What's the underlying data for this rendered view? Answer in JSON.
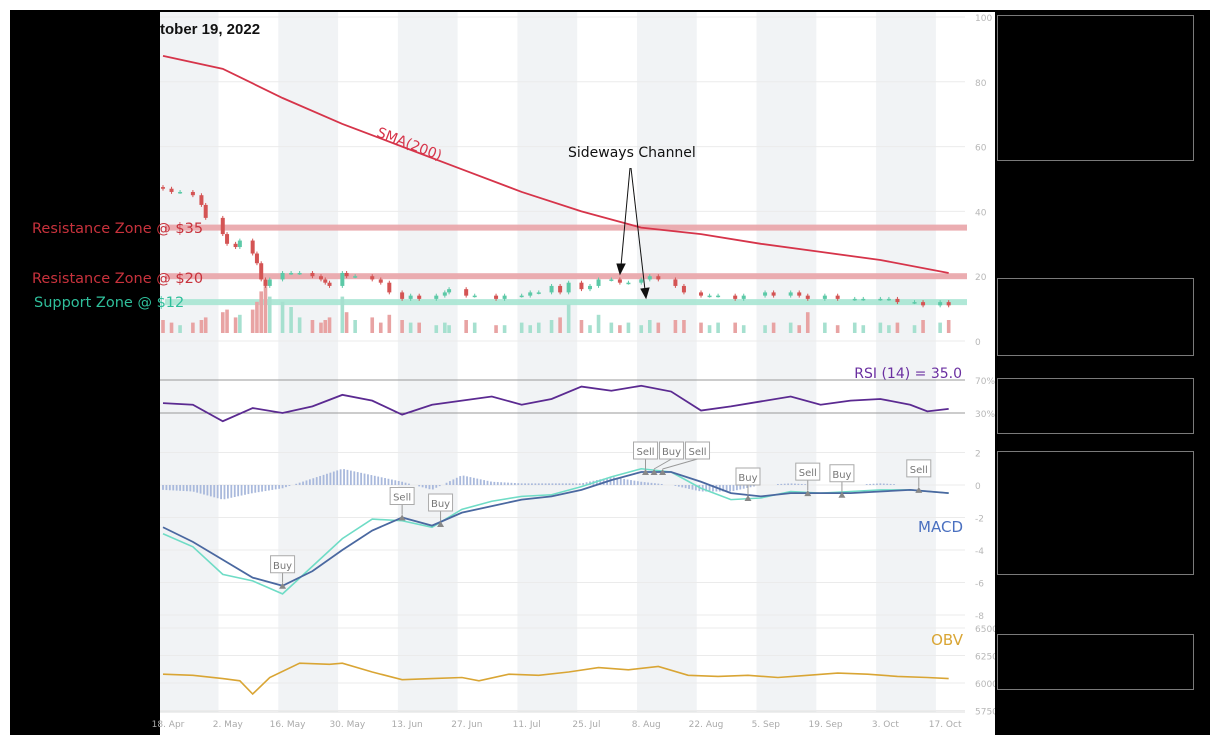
{
  "title": "tober 19, 2022",
  "colors": {
    "up": "#5cc9a7",
    "down": "#d45454",
    "vol_up": "#a6e0cf",
    "vol_down": "#e8a3a3",
    "sma": "#d6344a",
    "resistance": "#e9a4a8",
    "support": "#a7e5d3",
    "rsi": "#5b2a91",
    "macd": "#4a68a0",
    "signal": "#6fdcc6",
    "histogram": "#a9b9dc",
    "obv": "#d9a534",
    "stripe": "#f1f3f5",
    "grid": "#ebebeb"
  },
  "annotations": {
    "resistance_35": "Resistance Zone @ $35",
    "resistance_20": "Resistance Zone @ $20",
    "support_12": "Support Zone @ $12",
    "sma_label": "SMA(200)",
    "channel_label": "Sideways Channel",
    "rsi_label": "RSI (14) = 35.0",
    "macd_label": "MACD",
    "obv_label": "OBV"
  },
  "chart_data": [
    {
      "type": "candlestick",
      "panel": "price",
      "yticks": [
        "100",
        "80",
        "60",
        "40",
        "20",
        "0"
      ],
      "ylim": [
        0,
        100
      ],
      "xtick_labels": [
        "18. Apr",
        "2. May",
        "16. May",
        "30. May",
        "13. Jun",
        "27. Jun",
        "11. Jul",
        "25. Jul",
        "8. Aug",
        "22. Aug",
        "5. Sep",
        "19. Sep",
        "3. Oct",
        "17. Oct"
      ],
      "xtick_dates": [
        "2022-04-18",
        "2022-05-02",
        "2022-05-16",
        "2022-05-30",
        "2022-06-13",
        "2022-06-27",
        "2022-07-11",
        "2022-07-25",
        "2022-08-08",
        "2022-08-22",
        "2022-09-05",
        "2022-09-19",
        "2022-10-03",
        "2022-10-17"
      ],
      "dates": [
        "2022-04-18",
        "2022-04-20",
        "2022-04-22",
        "2022-04-25",
        "2022-04-27",
        "2022-04-28",
        "2022-05-02",
        "2022-05-03",
        "2022-05-05",
        "2022-05-06",
        "2022-05-09",
        "2022-05-10",
        "2022-05-11",
        "2022-05-12",
        "2022-05-13",
        "2022-05-16",
        "2022-05-18",
        "2022-05-20",
        "2022-05-23",
        "2022-05-25",
        "2022-05-26",
        "2022-05-27",
        "2022-05-30",
        "2022-05-31",
        "2022-06-02",
        "2022-06-06",
        "2022-06-08",
        "2022-06-10",
        "2022-06-13",
        "2022-06-15",
        "2022-06-17",
        "2022-06-21",
        "2022-06-23",
        "2022-06-24",
        "2022-06-28",
        "2022-06-30",
        "2022-07-05",
        "2022-07-07",
        "2022-07-11",
        "2022-07-13",
        "2022-07-15",
        "2022-07-18",
        "2022-07-20",
        "2022-07-22",
        "2022-07-25",
        "2022-07-27",
        "2022-07-29",
        "2022-08-01",
        "2022-08-03",
        "2022-08-05",
        "2022-08-08",
        "2022-08-10",
        "2022-08-12",
        "2022-08-16",
        "2022-08-18",
        "2022-08-22",
        "2022-08-24",
        "2022-08-26",
        "2022-08-30",
        "2022-09-01",
        "2022-09-06",
        "2022-09-08",
        "2022-09-12",
        "2022-09-14",
        "2022-09-16",
        "2022-09-20",
        "2022-09-23",
        "2022-09-27",
        "2022-09-29",
        "2022-10-03",
        "2022-10-05",
        "2022-10-07",
        "2022-10-11",
        "2022-10-13",
        "2022-10-17",
        "2022-10-19"
      ],
      "close": [
        47,
        46,
        46,
        45,
        42,
        38,
        33,
        30,
        29,
        31,
        27,
        24,
        19,
        17,
        19,
        21,
        21,
        21,
        20,
        19,
        18,
        17,
        21,
        20,
        20,
        19,
        18,
        15,
        13,
        14,
        13,
        14,
        15,
        16,
        14,
        14,
        13,
        14,
        14,
        15,
        15,
        17,
        15,
        18,
        16,
        17,
        19,
        19,
        18,
        18,
        19,
        20,
        19,
        17,
        15,
        14,
        14,
        14,
        13,
        14,
        15,
        14,
        15,
        14,
        13,
        14,
        13,
        13,
        13,
        13,
        13,
        12,
        12,
        11,
        12,
        11
      ],
      "volume": [
        5,
        4,
        3,
        4,
        5,
        6,
        8,
        9,
        6,
        7,
        9,
        12,
        16,
        18,
        14,
        12,
        10,
        6,
        5,
        4,
        5,
        6,
        14,
        8,
        5,
        6,
        4,
        7,
        5,
        4,
        4,
        3,
        4,
        3,
        5,
        4,
        3,
        3,
        4,
        3,
        4,
        5,
        6,
        11,
        5,
        3,
        7,
        4,
        3,
        4,
        3,
        5,
        4,
        5,
        5,
        4,
        3,
        4,
        4,
        3,
        3,
        4,
        4,
        3,
        8,
        4,
        3,
        4,
        3,
        4,
        3,
        4,
        3,
        5,
        4,
        5
      ],
      "sma200": {
        "name": "SMA(200)",
        "dates": [
          "2022-04-18",
          "2022-05-02",
          "2022-05-16",
          "2022-05-30",
          "2022-06-13",
          "2022-06-27",
          "2022-07-11",
          "2022-07-25",
          "2022-08-08",
          "2022-08-22",
          "2022-09-05",
          "2022-09-19",
          "2022-10-03",
          "2022-10-19"
        ],
        "values": [
          88,
          84,
          75,
          67,
          60,
          53,
          46,
          40,
          35,
          33,
          30,
          27.5,
          25,
          21
        ]
      },
      "zones": [
        {
          "label": "Resistance Zone @ $35",
          "value": 35,
          "kind": "resistance"
        },
        {
          "label": "Resistance Zone @ $20",
          "value": 20,
          "kind": "resistance"
        },
        {
          "label": "Support Zone @ $12",
          "value": 12,
          "kind": "support"
        }
      ]
    },
    {
      "type": "line",
      "panel": "rsi",
      "name": "RSI (14) = 35.0",
      "yticks": [
        "70%",
        "30%"
      ],
      "levels": [
        70,
        30
      ],
      "dates": [
        "2022-04-18",
        "2022-04-25",
        "2022-05-02",
        "2022-05-09",
        "2022-05-16",
        "2022-05-23",
        "2022-05-30",
        "2022-06-06",
        "2022-06-13",
        "2022-06-20",
        "2022-06-27",
        "2022-07-04",
        "2022-07-11",
        "2022-07-18",
        "2022-07-25",
        "2022-08-01",
        "2022-08-08",
        "2022-08-15",
        "2022-08-22",
        "2022-08-29",
        "2022-09-05",
        "2022-09-12",
        "2022-09-19",
        "2022-09-26",
        "2022-10-03",
        "2022-10-10",
        "2022-10-14",
        "2022-10-19"
      ],
      "values": [
        42,
        40,
        20,
        36,
        30,
        38,
        52,
        45,
        28,
        40,
        45,
        50,
        40,
        47,
        62,
        57,
        63,
        56,
        33,
        38,
        44,
        50,
        40,
        45,
        47,
        40,
        32,
        35
      ]
    },
    {
      "type": "line",
      "panel": "macd",
      "name": "MACD",
      "yticks": [
        "2",
        "0",
        "-2",
        "-4",
        "-6",
        "-8"
      ],
      "ylim": [
        -8,
        2
      ],
      "dates": [
        "2022-04-18",
        "2022-04-25",
        "2022-05-02",
        "2022-05-09",
        "2022-05-16",
        "2022-05-23",
        "2022-05-30",
        "2022-06-06",
        "2022-06-13",
        "2022-06-20",
        "2022-06-27",
        "2022-07-04",
        "2022-07-11",
        "2022-07-18",
        "2022-07-25",
        "2022-08-01",
        "2022-08-08",
        "2022-08-15",
        "2022-08-22",
        "2022-08-29",
        "2022-09-05",
        "2022-09-12",
        "2022-09-19",
        "2022-09-26",
        "2022-10-03",
        "2022-10-10",
        "2022-10-19"
      ],
      "macd": [
        -2.6,
        -3.5,
        -4.6,
        -5.7,
        -6.2,
        -5.3,
        -4,
        -2.8,
        -2,
        -2.5,
        -1.7,
        -1.3,
        -0.9,
        -0.7,
        -0.3,
        0.3,
        0.8,
        0.8,
        0.2,
        -0.5,
        -0.7,
        -0.5,
        -0.5,
        -0.5,
        -0.4,
        -0.3,
        -0.5
      ],
      "signal": [
        -3.0,
        -3.8,
        -5.5,
        -5.9,
        -6.7,
        -5,
        -3.3,
        -2.1,
        -2.2,
        -2.6,
        -1.5,
        -1,
        -0.7,
        -0.6,
        -0.1,
        0.5,
        1.0,
        0.8,
        -0.2,
        -0.9,
        -0.8,
        -0.4,
        -0.5,
        -0.4,
        -0.3,
        -0.3,
        -0.5
      ],
      "histogram": [
        -0.3,
        -0.4,
        -0.9,
        -0.5,
        -0.2,
        0.4,
        1.0,
        0.6,
        0.2,
        -0.3,
        0.6,
        0.2,
        0.1,
        0.1,
        0.1,
        0.5,
        0.2,
        0,
        -0.4,
        -0.4,
        0,
        0.1,
        0,
        0,
        0.1,
        0,
        0
      ],
      "signals": [
        {
          "date": "2022-05-16",
          "type": "Buy",
          "value": -6.2
        },
        {
          "date": "2022-06-13",
          "type": "Sell",
          "value": -2.0
        },
        {
          "date": "2022-06-22",
          "type": "Buy",
          "value": -2.4
        },
        {
          "date": "2022-08-09",
          "type": "Sell",
          "value": 0.8
        },
        {
          "date": "2022-08-11",
          "type": "Buy",
          "value": 0.8
        },
        {
          "date": "2022-08-13",
          "type": "Sell",
          "value": 0.8
        },
        {
          "date": "2022-09-02",
          "type": "Buy",
          "value": -0.8
        },
        {
          "date": "2022-09-16",
          "type": "Sell",
          "value": -0.5
        },
        {
          "date": "2022-09-24",
          "type": "Buy",
          "value": -0.6
        },
        {
          "date": "2022-10-12",
          "type": "Sell",
          "value": -0.3
        }
      ]
    },
    {
      "type": "line",
      "panel": "obv",
      "name": "OBV",
      "yticks": [
        "6500",
        "6250",
        "6000",
        "5750"
      ],
      "ylim": [
        5750,
        6500
      ],
      "dates": [
        "2022-04-18",
        "2022-04-25",
        "2022-05-02",
        "2022-05-06",
        "2022-05-09",
        "2022-05-13",
        "2022-05-20",
        "2022-05-27",
        "2022-05-30",
        "2022-06-06",
        "2022-06-13",
        "2022-06-20",
        "2022-06-27",
        "2022-07-01",
        "2022-07-08",
        "2022-07-15",
        "2022-07-22",
        "2022-07-29",
        "2022-08-05",
        "2022-08-12",
        "2022-08-19",
        "2022-08-26",
        "2022-09-02",
        "2022-09-09",
        "2022-09-16",
        "2022-09-23",
        "2022-09-30",
        "2022-10-07",
        "2022-10-14",
        "2022-10-19"
      ],
      "values": [
        6080,
        6070,
        6040,
        6020,
        5900,
        6050,
        6180,
        6170,
        6180,
        6100,
        6030,
        6040,
        6050,
        6020,
        6080,
        6070,
        6100,
        6140,
        6120,
        6150,
        6070,
        6060,
        6070,
        6050,
        6070,
        6090,
        6080,
        6060,
        6050,
        6040
      ]
    }
  ]
}
